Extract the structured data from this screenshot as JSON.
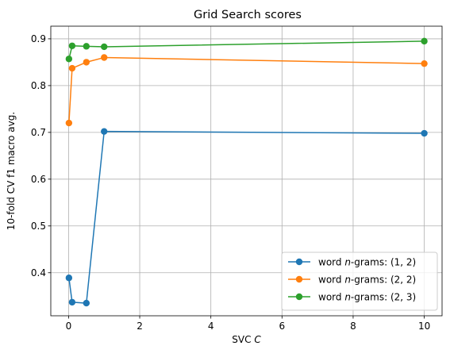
{
  "chart_data": {
    "type": "line",
    "title": "Grid Search scores",
    "xlabel": "SVC",
    "xlabel_var": "C",
    "ylabel": "10-fold CV f1 macro avg.",
    "xlim": [
      -0.5,
      10.5
    ],
    "ylim": [
      0.308,
      0.927
    ],
    "xticks": [
      0,
      2,
      4,
      6,
      8,
      10
    ],
    "yticks": [
      0.4,
      0.5,
      0.6,
      0.7,
      0.8,
      0.9
    ],
    "xtick_labels": [
      "0",
      "2",
      "4",
      "6",
      "8",
      "10"
    ],
    "ytick_labels": [
      "0.4",
      "0.5",
      "0.6",
      "0.7",
      "0.8",
      "0.9"
    ],
    "grid": true,
    "legend_position": "bottom-right",
    "x": [
      0.01,
      0.1,
      0.5,
      1,
      10
    ],
    "series": [
      {
        "name": "word n-grams: (1, 2)",
        "name_parts": [
          "word ",
          "n",
          "-grams: (1, 2)"
        ],
        "color": "#1f77b4",
        "values": [
          0.389,
          0.337,
          0.335,
          0.702,
          0.698
        ]
      },
      {
        "name": "word n-grams: (2, 2)",
        "name_parts": [
          "word ",
          "n",
          "-grams: (2, 2)"
        ],
        "color": "#ff7f0e",
        "values": [
          0.72,
          0.837,
          0.85,
          0.86,
          0.847
        ]
      },
      {
        "name": "word n-grams: (2, 3)",
        "name_parts": [
          "word ",
          "n",
          "-grams: (2, 3)"
        ],
        "color": "#2ca02c",
        "values": [
          0.857,
          0.885,
          0.884,
          0.883,
          0.895
        ]
      }
    ]
  }
}
